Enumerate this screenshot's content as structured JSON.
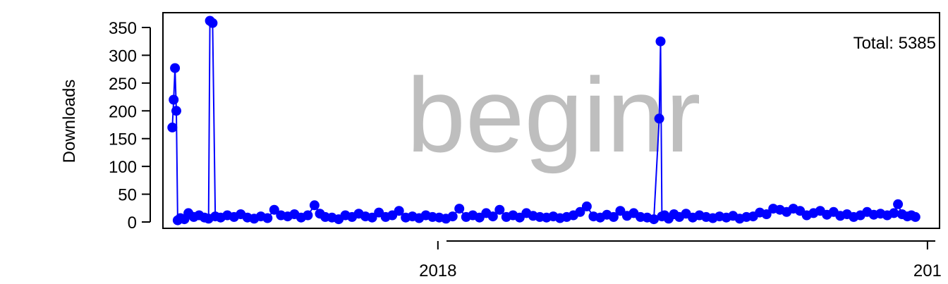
{
  "chart_data": {
    "type": "line",
    "title": "",
    "watermark": "beginr",
    "annotation": "Total: 5385",
    "ylabel": "Downloads",
    "xlabel": "",
    "ylim": [
      0,
      365
    ],
    "xlim": [
      "2017-06-10",
      "2019-01-10"
    ],
    "y_ticks": [
      0,
      50,
      100,
      150,
      200,
      250,
      300,
      350
    ],
    "x_ticks": [
      {
        "date": "2018-01-01",
        "label": "2018"
      },
      {
        "date": "2019-01-01",
        "label": "201"
      }
    ],
    "grid": false,
    "series_color": "#0000ff",
    "series": [
      {
        "points": [
          [
            "2017-06-17",
            170
          ],
          [
            "2017-06-18",
            220
          ],
          [
            "2017-06-19",
            277
          ],
          [
            "2017-06-20",
            200
          ],
          [
            "2017-06-21",
            3
          ],
          [
            "2017-06-23",
            7
          ],
          [
            "2017-06-26",
            5
          ],
          [
            "2017-06-29",
            16
          ],
          [
            "2017-07-03",
            9
          ],
          [
            "2017-07-07",
            12
          ],
          [
            "2017-07-11",
            8
          ],
          [
            "2017-07-14",
            6
          ],
          [
            "2017-07-15",
            362
          ],
          [
            "2017-07-17",
            358
          ],
          [
            "2017-07-19",
            10
          ],
          [
            "2017-07-23",
            8
          ],
          [
            "2017-07-28",
            12
          ],
          [
            "2017-08-02",
            9
          ],
          [
            "2017-08-07",
            14
          ],
          [
            "2017-08-12",
            8
          ],
          [
            "2017-08-17",
            6
          ],
          [
            "2017-08-22",
            10
          ],
          [
            "2017-08-27",
            7
          ],
          [
            "2017-09-01",
            22
          ],
          [
            "2017-09-06",
            12
          ],
          [
            "2017-09-11",
            10
          ],
          [
            "2017-09-16",
            14
          ],
          [
            "2017-09-21",
            8
          ],
          [
            "2017-09-26",
            12
          ],
          [
            "2017-10-01",
            30
          ],
          [
            "2017-10-05",
            15
          ],
          [
            "2017-10-09",
            9
          ],
          [
            "2017-10-14",
            8
          ],
          [
            "2017-10-19",
            5
          ],
          [
            "2017-10-24",
            12
          ],
          [
            "2017-10-29",
            9
          ],
          [
            "2017-11-03",
            15
          ],
          [
            "2017-11-08",
            10
          ],
          [
            "2017-11-13",
            8
          ],
          [
            "2017-11-18",
            17
          ],
          [
            "2017-11-23",
            9
          ],
          [
            "2017-11-28",
            12
          ],
          [
            "2017-12-03",
            20
          ],
          [
            "2017-12-08",
            8
          ],
          [
            "2017-12-13",
            10
          ],
          [
            "2017-12-18",
            7
          ],
          [
            "2017-12-23",
            12
          ],
          [
            "2017-12-28",
            9
          ],
          [
            "2018-01-02",
            8
          ],
          [
            "2018-01-07",
            6
          ],
          [
            "2018-01-12",
            10
          ],
          [
            "2018-01-17",
            24
          ],
          [
            "2018-01-22",
            9
          ],
          [
            "2018-01-27",
            12
          ],
          [
            "2018-02-01",
            8
          ],
          [
            "2018-02-06",
            16
          ],
          [
            "2018-02-11",
            10
          ],
          [
            "2018-02-16",
            22
          ],
          [
            "2018-02-21",
            9
          ],
          [
            "2018-02-26",
            12
          ],
          [
            "2018-03-03",
            8
          ],
          [
            "2018-03-08",
            16
          ],
          [
            "2018-03-13",
            11
          ],
          [
            "2018-03-18",
            9
          ],
          [
            "2018-03-23",
            8
          ],
          [
            "2018-03-28",
            10
          ],
          [
            "2018-04-02",
            7
          ],
          [
            "2018-04-07",
            9
          ],
          [
            "2018-04-12",
            12
          ],
          [
            "2018-04-17",
            18
          ],
          [
            "2018-04-22",
            28
          ],
          [
            "2018-04-27",
            10
          ],
          [
            "2018-05-02",
            8
          ],
          [
            "2018-05-07",
            13
          ],
          [
            "2018-05-12",
            9
          ],
          [
            "2018-05-17",
            20
          ],
          [
            "2018-05-22",
            11
          ],
          [
            "2018-05-27",
            16
          ],
          [
            "2018-06-01",
            9
          ],
          [
            "2018-06-06",
            8
          ],
          [
            "2018-06-11",
            5
          ],
          [
            "2018-06-15",
            186
          ],
          [
            "2018-06-16",
            325
          ],
          [
            "2018-06-17",
            10
          ],
          [
            "2018-06-19",
            12
          ],
          [
            "2018-06-22",
            6
          ],
          [
            "2018-06-26",
            14
          ],
          [
            "2018-06-30",
            9
          ],
          [
            "2018-07-05",
            15
          ],
          [
            "2018-07-10",
            8
          ],
          [
            "2018-07-15",
            12
          ],
          [
            "2018-07-20",
            9
          ],
          [
            "2018-07-25",
            7
          ],
          [
            "2018-07-30",
            10
          ],
          [
            "2018-08-04",
            8
          ],
          [
            "2018-08-09",
            11
          ],
          [
            "2018-08-14",
            6
          ],
          [
            "2018-08-19",
            9
          ],
          [
            "2018-08-24",
            10
          ],
          [
            "2018-08-29",
            17
          ],
          [
            "2018-09-03",
            14
          ],
          [
            "2018-09-08",
            24
          ],
          [
            "2018-09-13",
            22
          ],
          [
            "2018-09-18",
            18
          ],
          [
            "2018-09-23",
            24
          ],
          [
            "2018-09-28",
            20
          ],
          [
            "2018-10-03",
            12
          ],
          [
            "2018-10-08",
            16
          ],
          [
            "2018-10-13",
            20
          ],
          [
            "2018-10-18",
            13
          ],
          [
            "2018-10-23",
            18
          ],
          [
            "2018-10-28",
            11
          ],
          [
            "2018-11-02",
            14
          ],
          [
            "2018-11-07",
            9
          ],
          [
            "2018-11-12",
            12
          ],
          [
            "2018-11-17",
            18
          ],
          [
            "2018-11-22",
            13
          ],
          [
            "2018-11-27",
            15
          ],
          [
            "2018-12-02",
            12
          ],
          [
            "2018-12-07",
            16
          ],
          [
            "2018-12-10",
            32
          ],
          [
            "2018-12-13",
            14
          ],
          [
            "2018-12-17",
            10
          ],
          [
            "2018-12-20",
            12
          ],
          [
            "2018-12-23",
            9
          ]
        ]
      }
    ]
  }
}
